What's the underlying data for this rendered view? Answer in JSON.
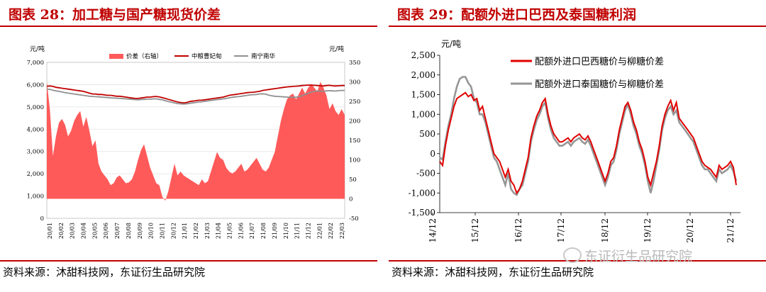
{
  "left": {
    "title": "图表 28：加工糖与国产糖现货价差",
    "source": "资料来源：沐甜科技网，东证衍生品研究院"
  },
  "right": {
    "title": "图表 29：配额外进口巴西及泰国糖利润",
    "source": "资料来源：沐甜科技网，东证衍生品研究院"
  },
  "watermark": "东证衍生品研究院",
  "chart_data": [
    {
      "type": "line",
      "title": "",
      "left_unit": "元/吨",
      "right_unit": "元/吨",
      "ylim": [
        0,
        7000
      ],
      "y_ticks": [
        "0",
        "1,000",
        "2,000",
        "3,000",
        "4,000",
        "5,000",
        "6,000",
        "7,000"
      ],
      "y2lim": [
        -50,
        350
      ],
      "y2_ticks": [
        "-50",
        "0",
        "50",
        "100",
        "150",
        "200",
        "250",
        "300",
        "350"
      ],
      "x_labels": [
        "20/01",
        "20/02",
        "20/03",
        "20/04",
        "20/05",
        "20/06",
        "20/07",
        "20/08",
        "20/09",
        "20/10",
        "20/11",
        "20/12",
        "21/01",
        "21/02",
        "21/03",
        "21/04",
        "21/05",
        "21/06",
        "21/07",
        "21/08",
        "21/09",
        "21/10",
        "21/11",
        "21/12",
        "22/01",
        "22/02",
        "22/03"
      ],
      "grid": true,
      "legend": "top",
      "series": [
        {
          "name": "价差（右轴）",
          "kind": "area",
          "axis": "right",
          "color": "#ff5a5a",
          "values": [
            300,
            230,
            110,
            160,
            195,
            205,
            190,
            160,
            175,
            200,
            215,
            225,
            185,
            210,
            175,
            135,
            150,
            90,
            70,
            60,
            50,
            35,
            40,
            55,
            60,
            50,
            40,
            42,
            50,
            70,
            100,
            125,
            140,
            110,
            80,
            60,
            40,
            35,
            5,
            -5,
            20,
            55,
            90,
            60,
            70,
            60,
            55,
            50,
            45,
            40,
            35,
            50,
            40,
            45,
            70,
            95,
            120,
            105,
            100,
            80,
            70,
            65,
            70,
            80,
            90,
            70,
            75,
            85,
            95,
            105,
            90,
            75,
            70,
            80,
            100,
            120,
            160,
            200,
            230,
            255,
            265,
            270,
            255,
            270,
            285,
            270,
            285,
            295,
            285,
            275,
            300,
            285,
            265,
            230,
            245,
            225,
            215,
            230,
            215
          ]
        },
        {
          "name": "中粮曹妃甸",
          "kind": "line",
          "axis": "left",
          "color": "#c00000",
          "values": [
            5930,
            5940,
            5920,
            5880,
            5860,
            5840,
            5820,
            5800,
            5780,
            5760,
            5740,
            5720,
            5700,
            5660,
            5620,
            5580,
            5580,
            5560,
            5560,
            5540,
            5520,
            5520,
            5500,
            5480,
            5480,
            5460,
            5440,
            5420,
            5400,
            5380,
            5380,
            5400,
            5420,
            5440,
            5440,
            5460,
            5470,
            5450,
            5420,
            5380,
            5340,
            5300,
            5260,
            5220,
            5200,
            5180,
            5200,
            5240,
            5260,
            5280,
            5300,
            5300,
            5320,
            5340,
            5360,
            5380,
            5400,
            5420,
            5440,
            5480,
            5520,
            5540,
            5560,
            5580,
            5600,
            5620,
            5640,
            5650,
            5660,
            5680,
            5700,
            5740,
            5760,
            5780,
            5800,
            5820,
            5840,
            5860,
            5880,
            5900,
            5910,
            5920,
            5930,
            5940,
            5960,
            5970,
            5980,
            5980,
            5970,
            5960,
            5950,
            5940,
            5960,
            5970,
            5950,
            5940,
            5950,
            5960,
            5960
          ]
        },
        {
          "name": "南宁南华",
          "kind": "line",
          "axis": "left",
          "color": "#909090",
          "values": [
            5790,
            5790,
            5750,
            5720,
            5700,
            5670,
            5640,
            5620,
            5600,
            5580,
            5560,
            5540,
            5520,
            5500,
            5480,
            5470,
            5460,
            5450,
            5440,
            5430,
            5420,
            5410,
            5400,
            5390,
            5380,
            5370,
            5360,
            5350,
            5340,
            5330,
            5320,
            5330,
            5340,
            5350,
            5350,
            5360,
            5360,
            5340,
            5320,
            5280,
            5240,
            5210,
            5180,
            5150,
            5140,
            5130,
            5140,
            5160,
            5180,
            5200,
            5220,
            5230,
            5250,
            5270,
            5290,
            5310,
            5330,
            5340,
            5360,
            5380,
            5410,
            5430,
            5450,
            5460,
            5480,
            5500,
            5520,
            5540,
            5550,
            5560,
            5580,
            5590,
            5570,
            5530,
            5500,
            5480,
            5470,
            5460,
            5450,
            5440,
            5430,
            5430,
            5440,
            5460,
            5500,
            5560,
            5620,
            5660,
            5700,
            5720,
            5710,
            5700,
            5720,
            5730,
            5720,
            5710,
            5730,
            5740,
            5740
          ]
        }
      ]
    },
    {
      "type": "line",
      "title": "",
      "ylabel": "元/吨",
      "ylim": [
        -1500,
        2500
      ],
      "y_ticks": [
        "2,500",
        "2,000",
        "1,500",
        "1,000",
        "500",
        "0",
        "-500",
        "-1,000",
        "-1,500"
      ],
      "x_labels": [
        "14/12",
        "15/12",
        "16/12",
        "17/12",
        "18/12",
        "19/12",
        "20/12",
        "21/12"
      ],
      "grid": false,
      "legend": "top-right",
      "series": [
        {
          "name": "配额外进口巴西糖价与柳糖价差",
          "color": "#e00000",
          "values": [
            -200,
            -300,
            200,
            600,
            900,
            1200,
            1400,
            1450,
            1500,
            1550,
            1450,
            1500,
            1350,
            1400,
            1100,
            1200,
            900,
            600,
            300,
            0,
            -100,
            -200,
            -400,
            -600,
            -400,
            -700,
            -800,
            -1000,
            -900,
            -700,
            -400,
            -100,
            400,
            700,
            950,
            1100,
            1300,
            1400,
            1000,
            700,
            500,
            400,
            300,
            300,
            350,
            400,
            300,
            400,
            450,
            500,
            400,
            350,
            450,
            300,
            100,
            -100,
            -300,
            -500,
            -700,
            -500,
            -200,
            -100,
            200,
            600,
            900,
            1200,
            1300,
            1100,
            800,
            600,
            300,
            100,
            -200,
            -600,
            -800,
            -500,
            -200,
            200,
            700,
            1000,
            1200,
            1350,
            1100,
            1300,
            900,
            800,
            700,
            600,
            500,
            400,
            200,
            0,
            -200,
            -300,
            -350,
            -400,
            -500,
            -600,
            -300,
            -400,
            -350,
            -300,
            -200,
            -350,
            -800
          ]
        },
        {
          "name": "配额外进口泰国糖价与柳糖价差",
          "color": "#969696",
          "values": [
            -100,
            -150,
            300,
            700,
            1000,
            1400,
            1700,
            1900,
            1950,
            1950,
            1800,
            1700,
            1400,
            1300,
            1000,
            1000,
            800,
            500,
            200,
            -100,
            -200,
            -400,
            -600,
            -800,
            -500,
            -900,
            -1000,
            -1050,
            -900,
            -800,
            -500,
            -200,
            300,
            600,
            850,
            1000,
            1200,
            1300,
            900,
            600,
            400,
            300,
            200,
            200,
            250,
            300,
            200,
            300,
            350,
            400,
            300,
            250,
            350,
            200,
            0,
            -200,
            -400,
            -600,
            -800,
            -600,
            -300,
            -200,
            100,
            500,
            800,
            1100,
            1250,
            1000,
            700,
            500,
            200,
            0,
            -300,
            -700,
            -1000,
            -700,
            -300,
            100,
            600,
            900,
            1100,
            1200,
            1000,
            1100,
            800,
            700,
            600,
            500,
            400,
            300,
            100,
            -100,
            -300,
            -400,
            -400,
            -500,
            -600,
            -700,
            -400,
            -500,
            -450,
            -400,
            -300,
            -450,
            -700
          ]
        }
      ]
    }
  ]
}
